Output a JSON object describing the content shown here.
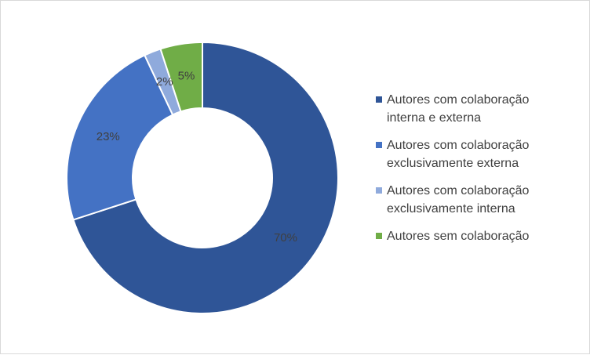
{
  "chart_data": {
    "type": "pie",
    "title": "",
    "donut": true,
    "slices": [
      {
        "label": "Autores com colaboração interna e externa",
        "legend_lines": [
          "Autores com colaboração",
          "interna e externa"
        ],
        "value": 70,
        "display": "70%",
        "color": "#2f5597"
      },
      {
        "label": "Autores com colaboração exclusivamente externa",
        "legend_lines": [
          "Autores com colaboração",
          "exclusivamente externa"
        ],
        "value": 23,
        "display": "23%",
        "color": "#4472c4"
      },
      {
        "label": "Autores com colaboração exclusivamente interna",
        "legend_lines": [
          "Autores com colaboração",
          "exclusivamente interna"
        ],
        "value": 2,
        "display": "2%",
        "color": "#8faadc"
      },
      {
        "label": "Autores sem colaboração",
        "legend_lines": [
          "Autores sem colaboração"
        ],
        "value": 5,
        "display": "5%",
        "color": "#70ad47"
      }
    ],
    "legend_position": "right"
  }
}
